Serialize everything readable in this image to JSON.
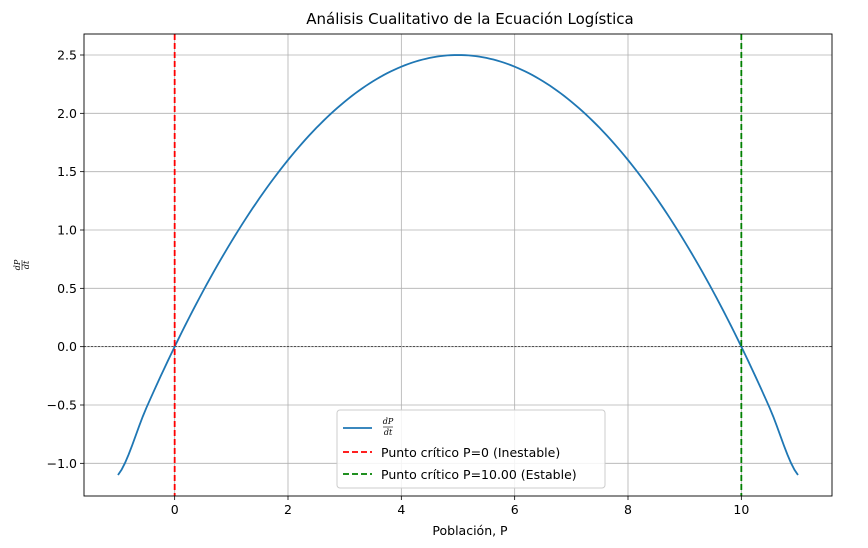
{
  "chart_data": {
    "type": "line",
    "title": "Análisis Cualitativo de la Ecuación Logística",
    "xlabel": "Población, P",
    "ylabel": {
      "numerator": "dP",
      "denominator": "dt"
    },
    "xlim": [
      -1.6,
      11.6
    ],
    "ylim": [
      -1.28,
      2.68
    ],
    "xticks": [
      0,
      2,
      4,
      6,
      8,
      10
    ],
    "xtick_labels": [
      "0",
      "2",
      "4",
      "6",
      "8",
      "10"
    ],
    "yticks": [
      -1.0,
      -0.5,
      0.0,
      0.5,
      1.0,
      1.5,
      2.0,
      2.5
    ],
    "ytick_labels": [
      "−1.0",
      "−0.5",
      "0.0",
      "0.5",
      "1.0",
      "1.5",
      "2.0",
      "2.5"
    ],
    "grid": true,
    "legend_position": "lower-center",
    "series": [
      {
        "name": {
          "numerator": "dP",
          "denominator": "dt"
        },
        "color": "#1f77b4",
        "style": "solid",
        "x": [
          -1.0,
          -0.5,
          0.0,
          0.5,
          1.0,
          1.5,
          2.0,
          2.5,
          3.0,
          3.5,
          4.0,
          4.5,
          5.0,
          5.5,
          6.0,
          6.5,
          7.0,
          7.5,
          8.0,
          8.5,
          9.0,
          9.5,
          10.0,
          10.5,
          11.0
        ],
        "y": [
          -1.1,
          -0.525,
          0.0,
          0.475,
          0.9,
          1.275,
          1.6,
          1.875,
          2.1,
          2.275,
          2.4,
          2.475,
          2.5,
          2.475,
          2.4,
          2.275,
          2.1,
          1.875,
          1.6,
          1.275,
          0.9,
          0.475,
          0.0,
          -0.525,
          -1.1
        ]
      }
    ],
    "vlines": [
      {
        "x": 0,
        "color": "#ff0000",
        "style": "dashed",
        "label": "Punto crítico P=0 (Inestable)"
      },
      {
        "x": 10,
        "color": "#008000",
        "style": "dashed",
        "label": "Punto crítico P=10.00 (Estable)"
      }
    ],
    "hlines": [
      {
        "y": 0,
        "color": "#000000",
        "style": "dashed"
      }
    ]
  }
}
